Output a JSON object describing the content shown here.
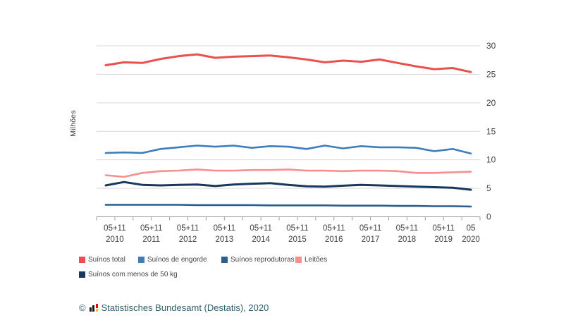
{
  "chart": {
    "unit_label": "Milhões",
    "colors": {
      "grid": "#d9d9d9",
      "axis_line": "#9b9b9b",
      "axis_text": "#404040",
      "background": "#ffffff"
    }
  },
  "chart_data": {
    "type": "line",
    "title": "",
    "xlabel": "",
    "ylabel": "Milhões",
    "ylim": [
      0,
      30
    ],
    "yticks": [
      0,
      5,
      10,
      15,
      20,
      25,
      30
    ],
    "grid": true,
    "legend_position": "bottom",
    "x_group_labels": [
      {
        "top": "05+11",
        "bottom": "2010",
        "span": 2
      },
      {
        "top": "05+11",
        "bottom": "2011",
        "span": 2
      },
      {
        "top": "05+11",
        "bottom": "2012",
        "span": 2
      },
      {
        "top": "05+11",
        "bottom": "2013",
        "span": 2
      },
      {
        "top": "05+11",
        "bottom": "2014",
        "span": 2
      },
      {
        "top": "05+11",
        "bottom": "2015",
        "span": 2
      },
      {
        "top": "05+11",
        "bottom": "2016",
        "span": 2
      },
      {
        "top": "05+11",
        "bottom": "2017",
        "span": 2
      },
      {
        "top": "05+11",
        "bottom": "2018",
        "span": 2
      },
      {
        "top": "05+11",
        "bottom": "2019",
        "span": 2
      },
      {
        "top": "05",
        "bottom": "2020",
        "span": 1
      }
    ],
    "categories": [
      "05 2010",
      "11 2010",
      "05 2011",
      "11 2011",
      "05 2012",
      "11 2012",
      "05 2013",
      "11 2013",
      "05 2014",
      "11 2014",
      "05 2015",
      "11 2015",
      "05 2016",
      "11 2016",
      "05 2017",
      "11 2017",
      "05 2018",
      "11 2018",
      "05 2019",
      "11 2019",
      "05 2020"
    ],
    "series": [
      {
        "name": "Suínos total",
        "color": "#e9504e",
        "stroke_width": 3,
        "values": [
          26.6,
          27.1,
          27.0,
          27.7,
          28.2,
          28.5,
          27.9,
          28.1,
          28.2,
          28.3,
          28.0,
          27.6,
          27.1,
          27.4,
          27.2,
          27.6,
          27.0,
          26.4,
          25.9,
          26.1,
          25.4
        ]
      },
      {
        "name": "Suínos de engorde",
        "color": "#3d7dbd",
        "stroke_width": 2.6,
        "values": [
          11.2,
          11.3,
          11.2,
          11.9,
          12.2,
          12.5,
          12.3,
          12.5,
          12.1,
          12.4,
          12.3,
          11.9,
          12.5,
          12.0,
          12.4,
          12.2,
          12.2,
          12.1,
          11.5,
          11.9,
          11.1
        ]
      },
      {
        "name": "Suínos reprodutoras",
        "color": "#2d5f8d",
        "stroke_width": 2.6,
        "values": [
          2.1,
          2.1,
          2.1,
          2.1,
          2.1,
          2.05,
          2.05,
          2.05,
          2.05,
          2.0,
          2.0,
          2.0,
          2.0,
          1.95,
          1.95,
          1.95,
          1.9,
          1.9,
          1.85,
          1.85,
          1.8
        ]
      },
      {
        "name": "Leitões",
        "color": "#f4908e",
        "stroke_width": 2.6,
        "values": [
          7.3,
          7.0,
          7.7,
          8.0,
          8.1,
          8.3,
          8.1,
          8.1,
          8.2,
          8.2,
          8.3,
          8.1,
          8.1,
          8.0,
          8.1,
          8.1,
          8.0,
          7.7,
          7.7,
          7.8,
          7.9
        ]
      },
      {
        "name": "Suínos com menos de 50 kg",
        "color": "#17375e",
        "stroke_width": 3,
        "values": [
          5.5,
          6.1,
          5.6,
          5.5,
          5.6,
          5.65,
          5.4,
          5.65,
          5.8,
          5.9,
          5.6,
          5.35,
          5.3,
          5.45,
          5.6,
          5.5,
          5.4,
          5.3,
          5.2,
          5.1,
          4.75
        ]
      }
    ]
  },
  "legend": {
    "row1_indices": [
      0,
      1,
      2,
      3
    ],
    "row2_indices": [
      4
    ]
  },
  "footer": {
    "copyright_symbol": "©",
    "source_text": "Statistisches Bundesamt (Destatis), 2020",
    "logo_colors": {
      "black": "#1d1d1b",
      "red": "#e2001a",
      "yellow": "#f5c400"
    }
  }
}
